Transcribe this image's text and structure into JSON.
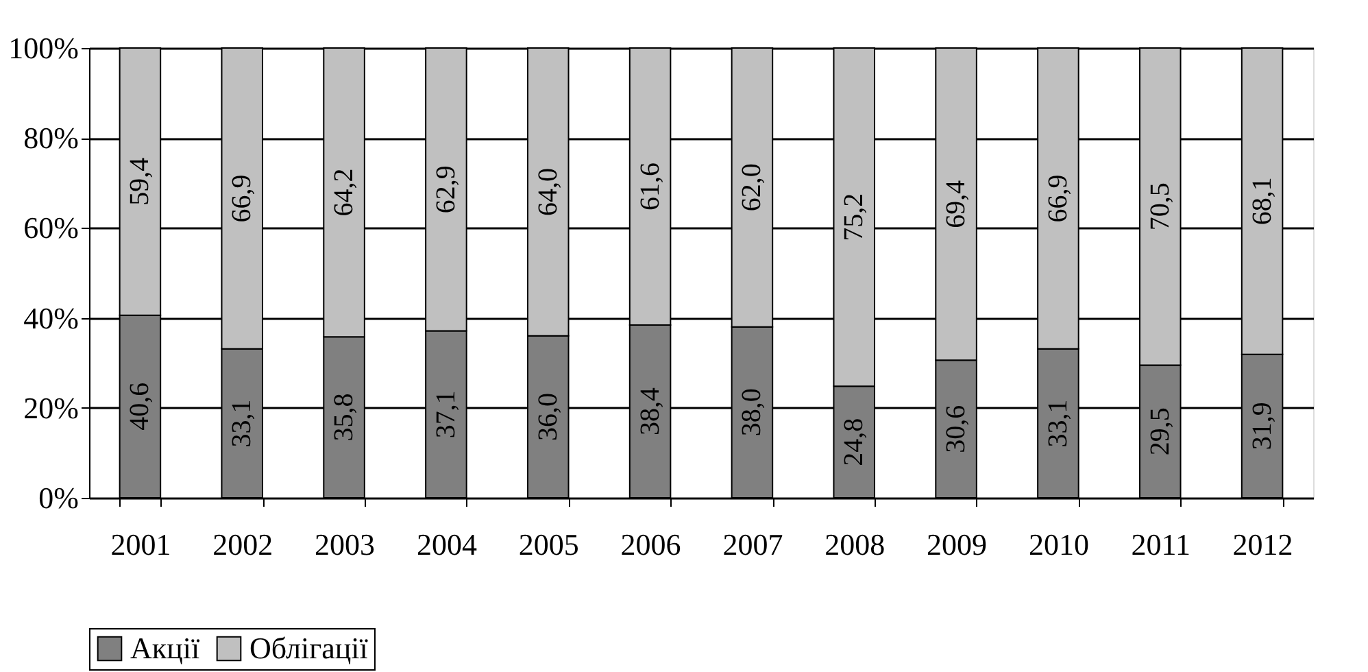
{
  "chart_data": {
    "type": "bar",
    "stacked": true,
    "categories": [
      "2001",
      "2002",
      "2003",
      "2004",
      "2005",
      "2006",
      "2007",
      "2008",
      "2009",
      "2010",
      "2011",
      "2012"
    ],
    "series": [
      {
        "name": "Акції",
        "color": "#808080",
        "values": [
          40.6,
          33.1,
          35.8,
          37.1,
          36.0,
          38.4,
          38.0,
          24.8,
          30.6,
          33.1,
          29.5,
          31.9
        ],
        "value_labels": [
          "40,6",
          "33,1",
          "35,8",
          "37,1",
          "36,0",
          "38,4",
          "38,0",
          "24,8",
          "30,6",
          "33,1",
          "29,5",
          "31,9"
        ]
      },
      {
        "name": "Облігації",
        "color": "#c0c0c0",
        "values": [
          59.4,
          66.9,
          64.2,
          62.9,
          64.0,
          61.6,
          62.0,
          75.2,
          69.4,
          66.9,
          70.5,
          68.1
        ],
        "value_labels": [
          "59,4",
          "66,9",
          "64,2",
          "62,9",
          "64,0",
          "61,6",
          "62,0",
          "75,2",
          "69,4",
          "66,9",
          "70,5",
          "68,1"
        ]
      }
    ],
    "ylim": [
      0,
      100
    ],
    "yticks": [
      {
        "value": 0,
        "label": "0%"
      },
      {
        "value": 20,
        "label": "20%"
      },
      {
        "value": 40,
        "label": "40%"
      },
      {
        "value": 60,
        "label": "60%"
      },
      {
        "value": 80,
        "label": "80%"
      },
      {
        "value": 100,
        "label": "100%"
      }
    ],
    "grid": "y",
    "legend": "bottom"
  }
}
